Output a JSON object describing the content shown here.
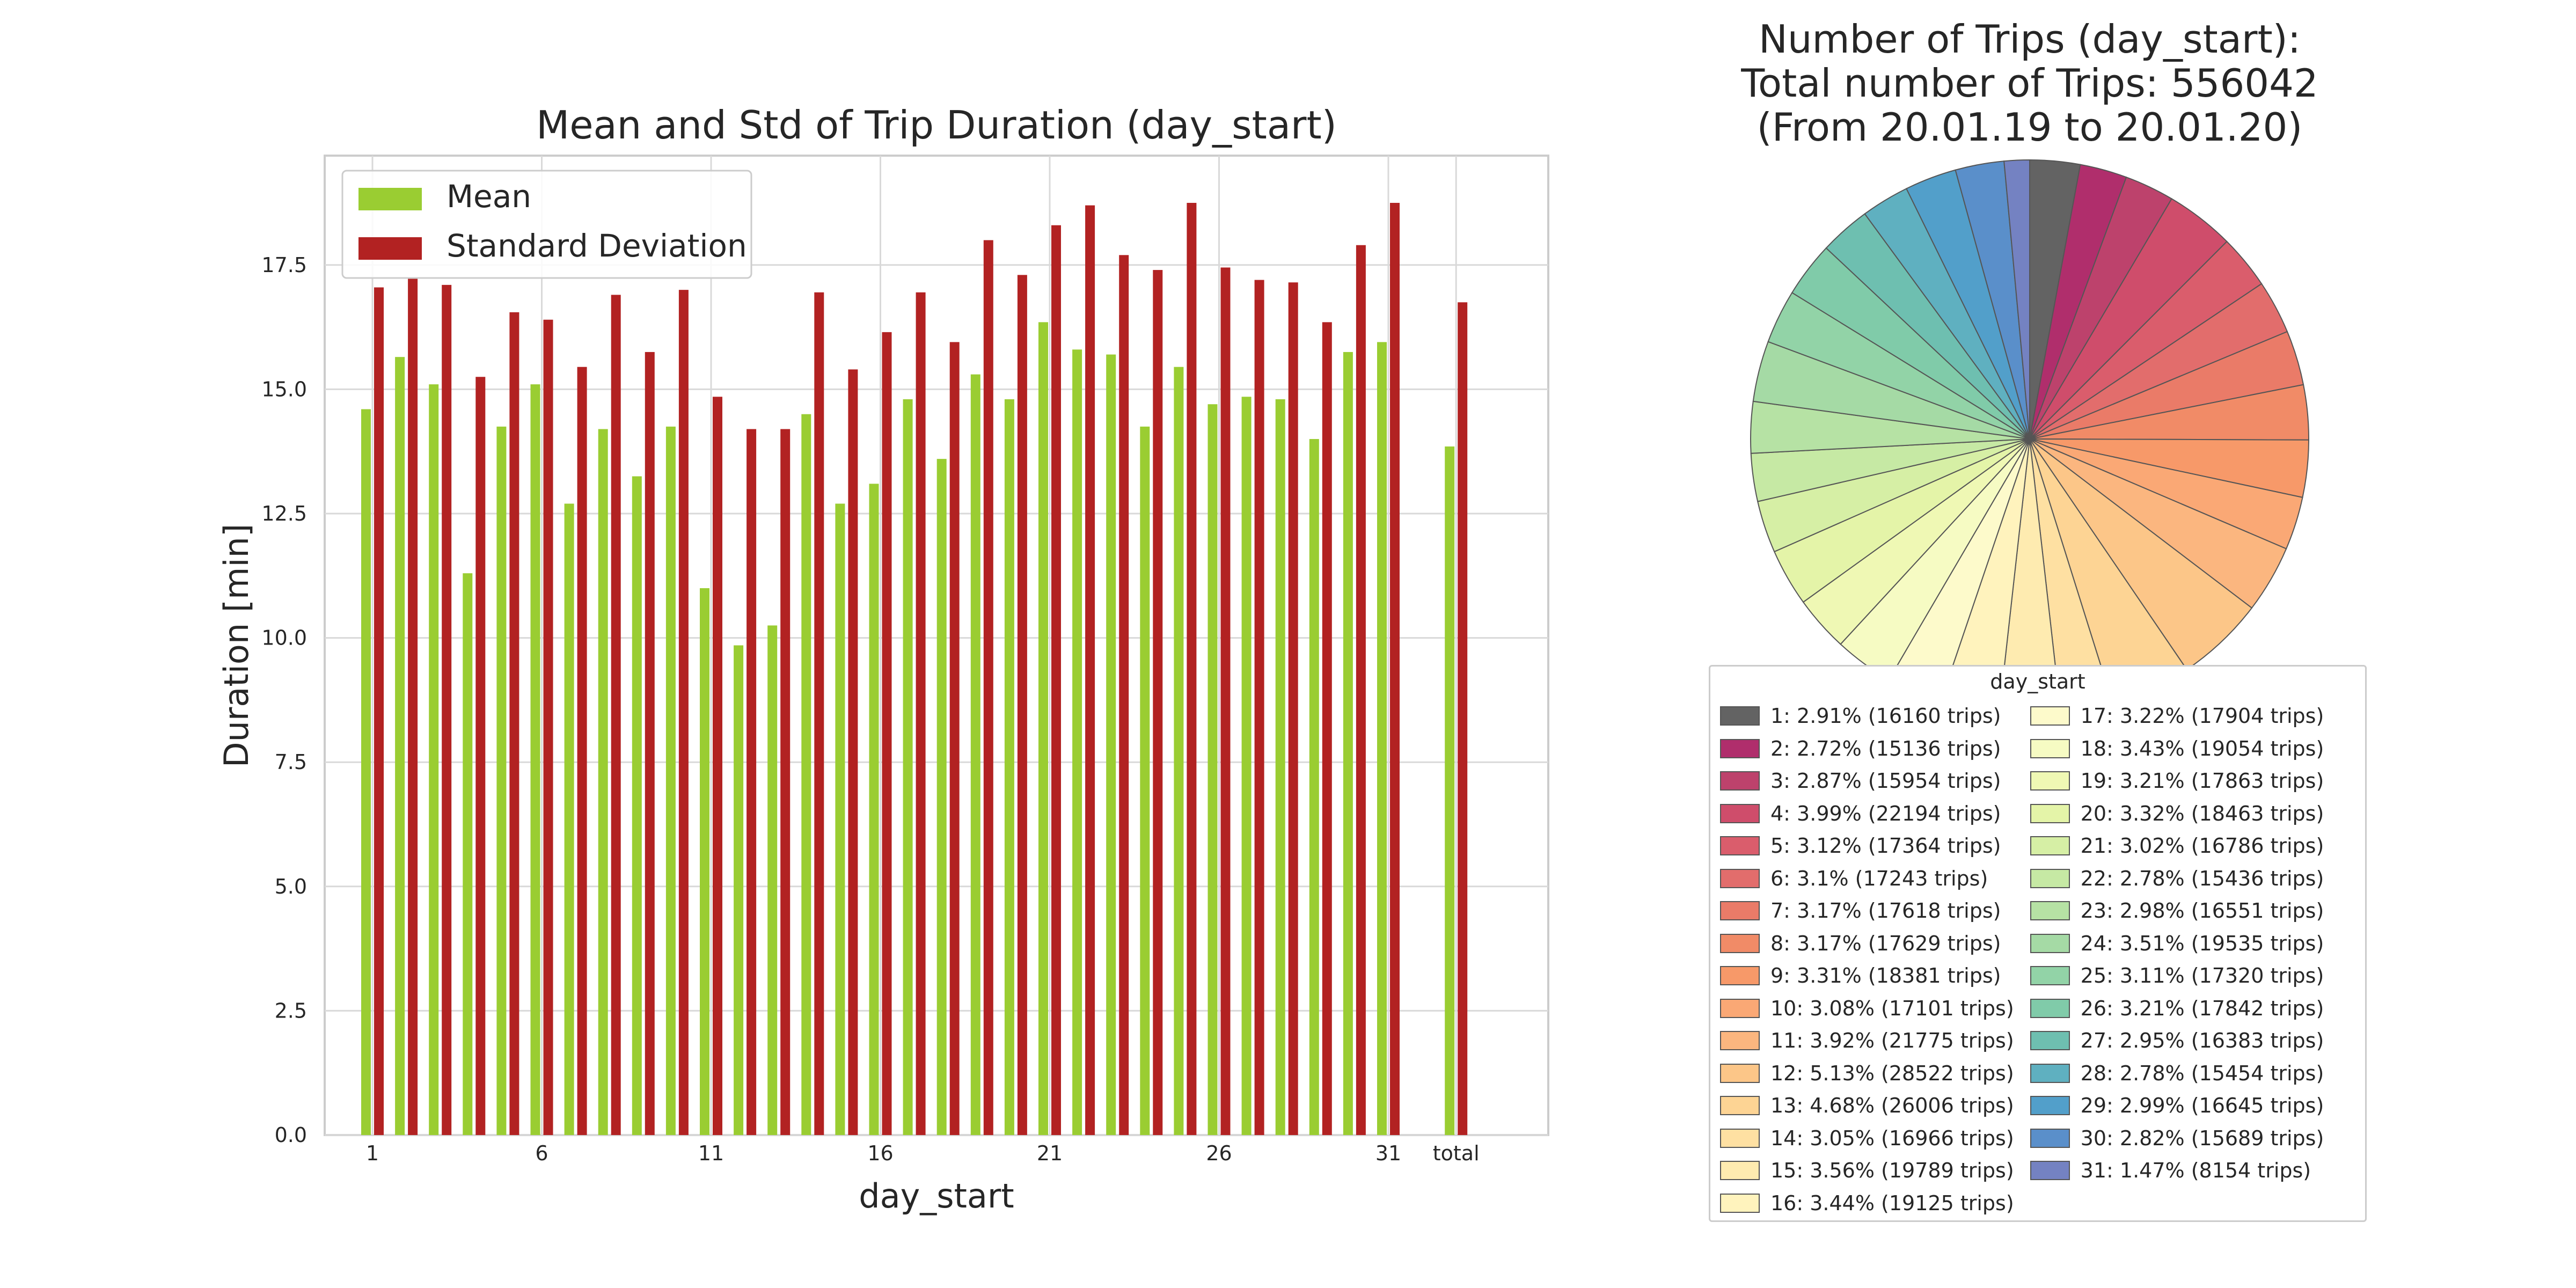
{
  "chart_data": [
    {
      "type": "bar",
      "title": "Mean and Std of Trip Duration (day_start)",
      "xlabel": "day_start",
      "ylabel": "Duration [min]",
      "ylim": [
        0,
        19.7
      ],
      "yticks": [
        "0.0",
        "2.5",
        "5.0",
        "7.5",
        "10.0",
        "12.5",
        "15.0",
        "17.5"
      ],
      "xticks": [
        "1",
        "6",
        "11",
        "16",
        "21",
        "26",
        "31",
        "total"
      ],
      "grid": true,
      "legend_position": "top-left",
      "categories": [
        "1",
        "2",
        "3",
        "4",
        "5",
        "6",
        "7",
        "8",
        "9",
        "10",
        "11",
        "12",
        "13",
        "14",
        "15",
        "16",
        "17",
        "18",
        "19",
        "20",
        "21",
        "22",
        "23",
        "24",
        "25",
        "26",
        "27",
        "28",
        "29",
        "30",
        "31",
        "total"
      ],
      "series": [
        {
          "name": "Mean",
          "color": "#9acd32",
          "values": [
            14.6,
            15.65,
            15.1,
            11.3,
            14.25,
            15.1,
            12.7,
            14.2,
            13.25,
            14.25,
            11.0,
            9.85,
            10.25,
            14.5,
            12.7,
            13.1,
            14.8,
            13.6,
            15.3,
            14.8,
            16.35,
            15.8,
            15.7,
            14.25,
            15.45,
            14.7,
            14.85,
            14.8,
            14.0,
            15.75,
            15.95,
            13.85
          ]
        },
        {
          "name": "Standard Deviation",
          "color": "#b22222",
          "values": [
            17.05,
            17.25,
            17.1,
            15.25,
            16.55,
            16.4,
            15.45,
            16.9,
            15.75,
            17.0,
            14.85,
            14.2,
            14.2,
            16.95,
            15.4,
            16.15,
            16.95,
            15.95,
            18.0,
            17.3,
            18.3,
            18.7,
            17.7,
            17.4,
            18.75,
            17.45,
            17.2,
            17.15,
            16.35,
            17.9,
            18.75,
            16.75
          ]
        }
      ]
    },
    {
      "type": "pie",
      "title_lines": [
        "Number of Trips (day_start):",
        "Total number of Trips: 556042",
        "(From 20.01.19 to 20.01.20)"
      ],
      "legend_title": "day_start",
      "legend_position": "bottom",
      "slices": [
        {
          "label": "1: 2.91% (16160 trips)",
          "value": 16160,
          "color": "#636363"
        },
        {
          "label": "2: 2.72% (15136 trips)",
          "value": 15136,
          "color": "#b02e6c"
        },
        {
          "label": "3: 2.87% (15954 trips)",
          "value": 15954,
          "color": "#bd426c"
        },
        {
          "label": "4: 3.99% (22194 trips)",
          "value": 22194,
          "color": "#cf4d6b"
        },
        {
          "label": "5: 3.12% (17364 trips)",
          "value": 17364,
          "color": "#da5d6c"
        },
        {
          "label": "6: 3.1% (17243 trips)",
          "value": 17243,
          "color": "#e26d6c"
        },
        {
          "label": "7: 3.17% (17618 trips)",
          "value": 17618,
          "color": "#ea7b68"
        },
        {
          "label": "8: 3.17% (17629 trips)",
          "value": 17629,
          "color": "#f18b67"
        },
        {
          "label": "9: 3.31% (18381 trips)",
          "value": 18381,
          "color": "#f79969"
        },
        {
          "label": "10: 3.08% (17101 trips)",
          "value": 17101,
          "color": "#faa875"
        },
        {
          "label": "11: 3.92% (21775 trips)",
          "value": 21775,
          "color": "#fbb67f"
        },
        {
          "label": "12: 5.13% (28522 trips)",
          "value": 28522,
          "color": "#fcc688"
        },
        {
          "label": "13: 4.68% (26006 trips)",
          "value": 26006,
          "color": "#fdd494"
        },
        {
          "label": "14: 3.05% (16966 trips)",
          "value": 16966,
          "color": "#fee0a2"
        },
        {
          "label": "15: 3.56% (19789 trips)",
          "value": 19789,
          "color": "#feebb0"
        },
        {
          "label": "16: 3.44% (19125 trips)",
          "value": 19125,
          "color": "#fff3bd"
        },
        {
          "label": "17: 3.22% (17904 trips)",
          "value": 17904,
          "color": "#fdfacb"
        },
        {
          "label": "18: 3.43% (19054 trips)",
          "value": 19054,
          "color": "#f6fbc3"
        },
        {
          "label": "19: 3.21% (17863 trips)",
          "value": 17863,
          "color": "#eff8b4"
        },
        {
          "label": "20: 3.32% (18463 trips)",
          "value": 18463,
          "color": "#e4f4a8"
        },
        {
          "label": "21: 3.02% (16786 trips)",
          "value": 16786,
          "color": "#d6efa5"
        },
        {
          "label": "22: 2.78% (15436 trips)",
          "value": 15436,
          "color": "#c6e9a4"
        },
        {
          "label": "23: 2.98% (16551 trips)",
          "value": 16551,
          "color": "#b6e2a4"
        },
        {
          "label": "24: 3.51% (19535 trips)",
          "value": 19535,
          "color": "#a5daa5"
        },
        {
          "label": "25: 3.11% (17320 trips)",
          "value": 17320,
          "color": "#92d3a7"
        },
        {
          "label": "26: 3.21% (17842 trips)",
          "value": 17842,
          "color": "#80cba9"
        },
        {
          "label": "27: 2.95% (16383 trips)",
          "value": 16383,
          "color": "#6ebfb0"
        },
        {
          "label": "28: 2.78% (15454 trips)",
          "value": 15454,
          "color": "#5fb0c0"
        },
        {
          "label": "29: 2.99% (16645 trips)",
          "value": 16645,
          "color": "#529fca"
        },
        {
          "label": "30: 2.82% (15689 trips)",
          "value": 15689,
          "color": "#5a8fca"
        },
        {
          "label": "31: 1.47% (8154 trips)",
          "value": 8154,
          "color": "#7482c2"
        }
      ]
    }
  ]
}
